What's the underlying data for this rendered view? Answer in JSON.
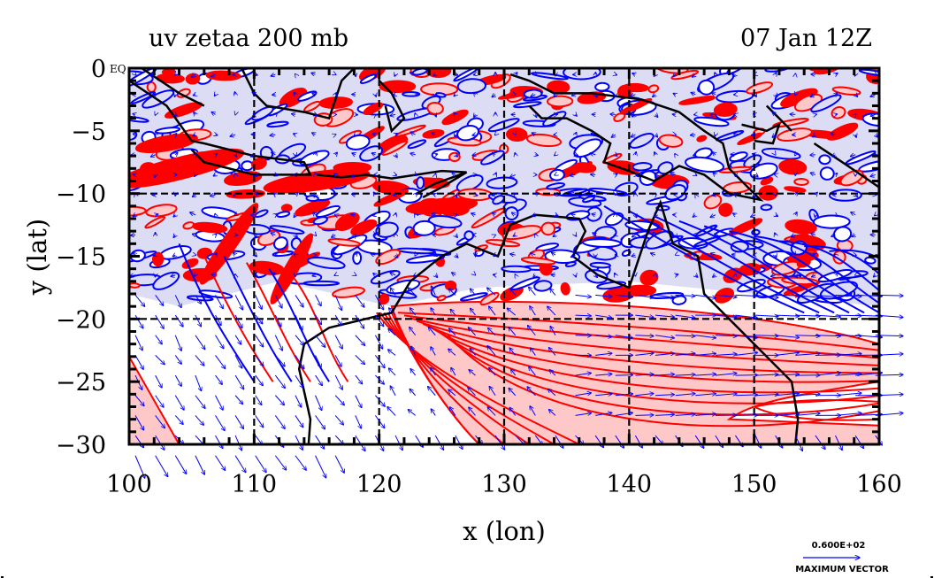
{
  "chart_data": {
    "type": "contour-vector-map",
    "title_left": "uv zetaa 200 mb",
    "title_right": "07 Jan 12Z",
    "xlabel": "x (lon)",
    "ylabel": "y (lat)",
    "xlim": [
      100,
      160
    ],
    "ylim": [
      -30,
      0
    ],
    "x_ticks": [
      100,
      110,
      120,
      130,
      140,
      150,
      160
    ],
    "x_tick_labels": [
      "100",
      "110",
      "120",
      "130",
      "140",
      "150",
      "160"
    ],
    "y_ticks": [
      0,
      -5,
      -10,
      -15,
      -20,
      -25,
      -30
    ],
    "y_tick_labels": [
      "0",
      "−5",
      "−10",
      "−15",
      "−20",
      "−25",
      "−30"
    ],
    "grid_lon": [
      110,
      120,
      130,
      140,
      150
    ],
    "grid_lat": [
      -10,
      -20
    ],
    "corner_label": "EQ",
    "fields": {
      "shaded": "zetaa (absolute vorticity)",
      "positive_contour_color": "#ff0000",
      "positive_fill_color": "#ffc8c8",
      "negative_contour_color": "#0000ff",
      "negative_fill_color": "#dcdcf5",
      "coastline_color": "#000000",
      "vector": "uv wind",
      "vector_color": "#0000ff"
    },
    "legend": {
      "vector_magnitude": "0.600E+02",
      "vector_label": "MAXIMUM VECTOR",
      "placement": "bottom-right"
    },
    "features": [
      {
        "name": "positive-vorticity-band-south",
        "lon_range": [
          121,
          160
        ],
        "lat_range": [
          -30,
          -19
        ],
        "sign": "positive"
      },
      {
        "name": "negative-vorticity-north",
        "lon_range": [
          100,
          160
        ],
        "lat_range": [
          -19,
          0
        ],
        "sign": "negative"
      },
      {
        "name": "positive-streak-sw",
        "lon_range": [
          100,
          104
        ],
        "lat_range": [
          -30,
          -24
        ],
        "sign": "positive"
      }
    ]
  }
}
